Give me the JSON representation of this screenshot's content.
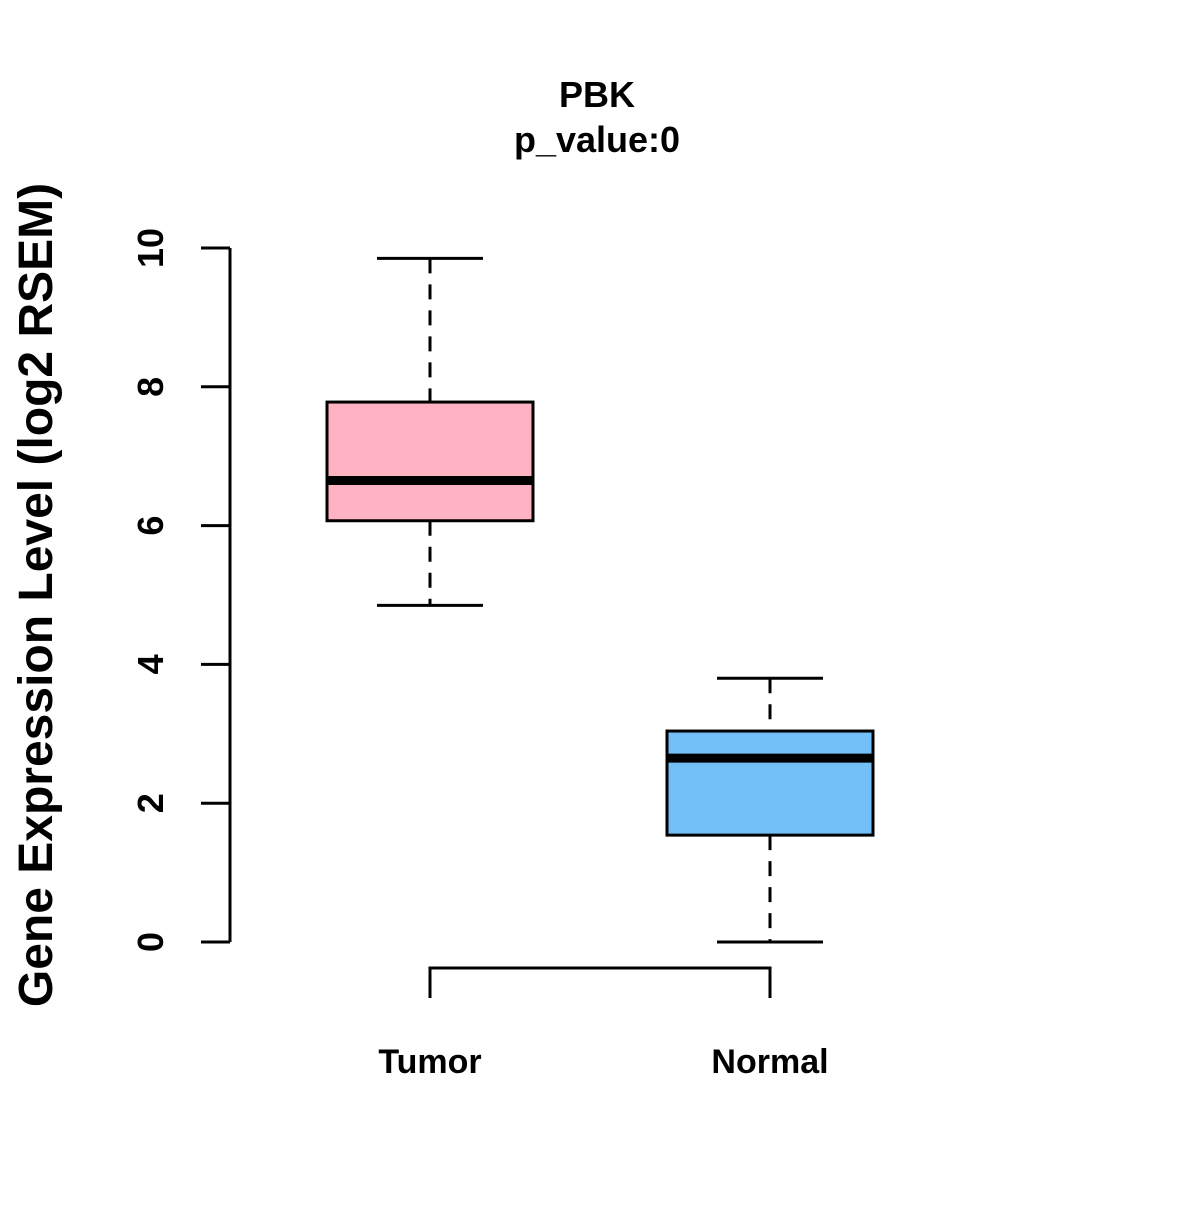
{
  "figure": {
    "title": "PBK",
    "subtitle": "p_value:0"
  },
  "y_axis": {
    "label": "Gene Expression Level (log2 RSEM)",
    "ticks": [
      "0",
      "2",
      "4",
      "6",
      "8",
      "10"
    ]
  },
  "x_axis": {
    "categories": [
      "Tumor",
      "Normal"
    ]
  },
  "colors": {
    "tumor_fill": "#FFB2C1",
    "normal_fill": "#73BFF7",
    "stroke": "#000000",
    "background": "#FFFFFF"
  },
  "chart_data": {
    "type": "boxplot",
    "title": "PBK",
    "subtitle": "p_value:0",
    "ylabel": "Gene Expression Level (log2 RSEM)",
    "xlabel": "",
    "ylim": [
      0,
      10
    ],
    "yticks": [
      0,
      2,
      4,
      6,
      8,
      10
    ],
    "categories": [
      "Tumor",
      "Normal"
    ],
    "grid": false,
    "legend": false,
    "series": [
      {
        "name": "Tumor",
        "color": "#FFB2C1",
        "whisker_low": 4.85,
        "q1": 6.07,
        "median": 6.65,
        "q3": 7.78,
        "whisker_high": 9.85
      },
      {
        "name": "Normal",
        "color": "#73BFF7",
        "whisker_low": 0,
        "q1": 1.54,
        "median": 2.65,
        "q3": 3.04,
        "whisker_high": 3.8
      }
    ]
  }
}
